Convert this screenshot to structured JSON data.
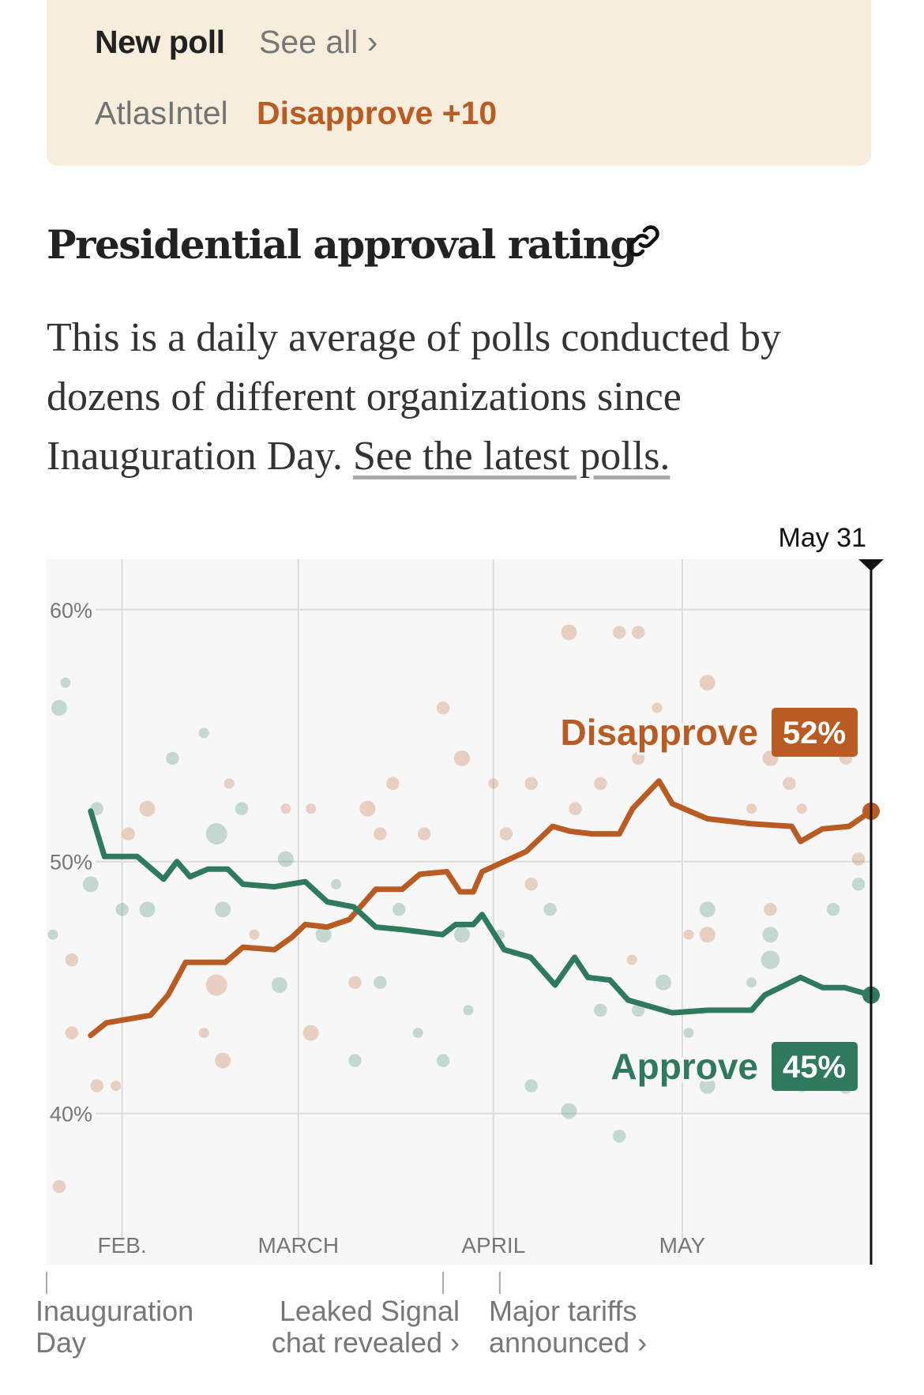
{
  "new_poll": {
    "label": "New poll",
    "see_all": "See all ›",
    "pollster": "AtlasIntel",
    "result": "Disapprove +10"
  },
  "title": "Presidential approval rating",
  "description": {
    "text": "This is a daily average of polls conducted by dozens of different organizations since Inauguration Day. ",
    "link": "See the latest polls."
  },
  "colors": {
    "disapprove": "#b85c24",
    "approve": "#2f7a5c",
    "card": "#f6eddc"
  },
  "chart_data": {
    "type": "line",
    "x_unit": "days since Jan 20",
    "xlim": [
      0,
      131
    ],
    "ylim": [
      34,
      62
    ],
    "yticks": [
      {
        "v": 60,
        "label": "60%"
      },
      {
        "v": 50,
        "label": "50%"
      },
      {
        "v": 40,
        "label": "40%"
      }
    ],
    "xticks": [
      {
        "d": 12,
        "label": "FEB."
      },
      {
        "d": 40,
        "label": "MARCH"
      },
      {
        "d": 71,
        "label": "APRIL"
      },
      {
        "d": 101,
        "label": "MAY"
      }
    ],
    "current_date": {
      "d": 131,
      "label": "May 31"
    },
    "series": [
      {
        "name": "Disapprove",
        "latest": "52%",
        "color": "#b85c24",
        "points": [
          [
            7,
            43.1
          ],
          [
            9.5,
            43.6
          ],
          [
            16.5,
            43.9
          ],
          [
            19.3,
            44.7
          ],
          [
            22.1,
            46.0
          ],
          [
            28.4,
            46.0
          ],
          [
            31.2,
            46.6
          ],
          [
            36.2,
            46.5
          ],
          [
            39,
            47.0
          ],
          [
            41.1,
            47.5
          ],
          [
            44.6,
            47.4
          ],
          [
            48.1,
            47.7
          ],
          [
            52.3,
            48.9
          ],
          [
            56.5,
            48.9
          ],
          [
            59.3,
            49.5
          ],
          [
            63.6,
            49.6
          ],
          [
            65.7,
            48.8
          ],
          [
            67.8,
            48.8
          ],
          [
            69.2,
            49.6
          ],
          [
            72.7,
            50.0
          ],
          [
            76.2,
            50.4
          ],
          [
            80.4,
            51.4
          ],
          [
            83.2,
            51.2
          ],
          [
            86.7,
            51.1
          ],
          [
            91,
            51.1
          ],
          [
            93.1,
            52.1
          ],
          [
            97.3,
            53.2
          ],
          [
            99.4,
            52.3
          ],
          [
            105,
            51.7
          ],
          [
            112,
            51.5
          ],
          [
            118.4,
            51.4
          ],
          [
            119.8,
            50.8
          ],
          [
            123.3,
            51.3
          ],
          [
            127.5,
            51.4
          ],
          [
            131,
            52.0
          ]
        ],
        "polls": [
          [
            83,
            59.1,
            2
          ],
          [
            91,
            59.1,
            1.5
          ],
          [
            94,
            59.1,
            1.5
          ],
          [
            105,
            57.1,
            2
          ],
          [
            63,
            56.1,
            1.5
          ],
          [
            66,
            54.1,
            2
          ],
          [
            16,
            52.1,
            2
          ],
          [
            13,
            51.1,
            1.5
          ],
          [
            8,
            41.1,
            1.5
          ],
          [
            2,
            37.1,
            1.5
          ],
          [
            27,
            45.1,
            3
          ],
          [
            28,
            42.1,
            2
          ],
          [
            42,
            43.2,
            2
          ],
          [
            51,
            52.1,
            2
          ],
          [
            53,
            51.1,
            1.5
          ],
          [
            73,
            51.1,
            1.5
          ],
          [
            77,
            53.1,
            1.5
          ],
          [
            94,
            54.1,
            1.5
          ],
          [
            115,
            54.1,
            2
          ],
          [
            118,
            53.1,
            1.5
          ],
          [
            127,
            54.1,
            1.5
          ],
          [
            129,
            50.1,
            1.5
          ],
          [
            105,
            47.1,
            2
          ],
          [
            102,
            47.1,
            1
          ],
          [
            115,
            48.1,
            1.5
          ],
          [
            49,
            45.2,
            1.5
          ],
          [
            38,
            52.1,
            1
          ],
          [
            33,
            47.1,
            1
          ],
          [
            4,
            46.1,
            1.5
          ],
          [
            4,
            43.2,
            1.5
          ],
          [
            11,
            41.1,
            1
          ],
          [
            77,
            49.1,
            1.5
          ],
          [
            60,
            51.1,
            1.5
          ],
          [
            71,
            53.1,
            1
          ],
          [
            84,
            52.1,
            1.5
          ],
          [
            88,
            53.1,
            1.5
          ],
          [
            97,
            56.1,
            1
          ],
          [
            112,
            52.1,
            1
          ],
          [
            120,
            52.1,
            1
          ],
          [
            93,
            46.1,
            1
          ],
          [
            29,
            53.1,
            1
          ],
          [
            42,
            52.1,
            1
          ],
          [
            25,
            43.2,
            1
          ],
          [
            55,
            53.1,
            1.5
          ]
        ]
      },
      {
        "name": "Approve",
        "latest": "45%",
        "color": "#2f7a5c",
        "points": [
          [
            7,
            52.0
          ],
          [
            9.2,
            50.2
          ],
          [
            14.4,
            50.2
          ],
          [
            18.6,
            49.3
          ],
          [
            20.7,
            50.0
          ],
          [
            22.8,
            49.4
          ],
          [
            25.6,
            49.7
          ],
          [
            28.8,
            49.7
          ],
          [
            31.2,
            49.1
          ],
          [
            36.2,
            49.0
          ],
          [
            41.1,
            49.2
          ],
          [
            44.6,
            48.4
          ],
          [
            48.8,
            48.2
          ],
          [
            52.3,
            47.4
          ],
          [
            56.5,
            47.3
          ],
          [
            62.9,
            47.1
          ],
          [
            65,
            47.5
          ],
          [
            67.8,
            47.5
          ],
          [
            69.2,
            47.9
          ],
          [
            72.7,
            46.5
          ],
          [
            76.9,
            46.2
          ],
          [
            80.8,
            45.1
          ],
          [
            83.9,
            46.2
          ],
          [
            86,
            45.4
          ],
          [
            89.5,
            45.3
          ],
          [
            92.4,
            44.5
          ],
          [
            96.6,
            44.2
          ],
          [
            99.4,
            44.0
          ],
          [
            105,
            44.1
          ],
          [
            112,
            44.1
          ],
          [
            114.1,
            44.7
          ],
          [
            119.8,
            45.4
          ],
          [
            123.3,
            45.0
          ],
          [
            126.8,
            45.0
          ],
          [
            131,
            44.7
          ]
        ],
        "polls": [
          [
            2,
            56.1,
            2
          ],
          [
            3,
            57.1,
            1
          ],
          [
            8,
            52.1,
            1.5
          ],
          [
            27,
            51.1,
            3
          ],
          [
            20,
            54.1,
            1.5
          ],
          [
            25,
            55.1,
            1
          ],
          [
            31,
            52.1,
            1.5
          ],
          [
            38,
            50.1,
            2
          ],
          [
            16,
            48.1,
            2
          ],
          [
            28,
            48.1,
            2
          ],
          [
            37,
            45.1,
            2
          ],
          [
            49,
            42.1,
            1.5
          ],
          [
            53,
            45.2,
            1.5
          ],
          [
            63,
            42.1,
            1.5
          ],
          [
            66,
            47.1,
            2
          ],
          [
            77,
            41.1,
            1.5
          ],
          [
            83,
            40.1,
            2
          ],
          [
            91,
            39.1,
            1.5
          ],
          [
            98,
            45.2,
            2
          ],
          [
            105,
            48.1,
            2
          ],
          [
            105,
            41.1,
            2
          ],
          [
            115,
            47.1,
            2
          ],
          [
            115,
            46.1,
            2.5
          ],
          [
            125,
            48.1,
            1.5
          ],
          [
            129,
            49.1,
            1.5
          ],
          [
            127,
            41.1,
            2
          ],
          [
            88,
            44.1,
            1.5
          ],
          [
            80,
            48.1,
            1.5
          ],
          [
            72,
            47.1,
            1
          ],
          [
            56,
            48.1,
            1.5
          ],
          [
            46,
            49.1,
            1
          ],
          [
            44,
            47.1,
            2
          ],
          [
            12,
            48.1,
            1.5
          ],
          [
            7,
            49.1,
            2
          ],
          [
            1,
            47.1,
            1
          ],
          [
            67,
            44.1,
            1
          ],
          [
            59,
            43.2,
            1
          ],
          [
            112,
            45.2,
            1
          ],
          [
            120,
            41.1,
            1.5
          ],
          [
            102,
            43.2,
            1
          ],
          [
            94,
            44.1,
            1.5
          ]
        ]
      }
    ],
    "annotations": [
      {
        "d": 0,
        "line1": "Inauguration",
        "line2": "Day"
      },
      {
        "d": 63,
        "line1": "Leaked Signal",
        "line2": "chat revealed ›"
      },
      {
        "d": 72,
        "line1": "Major tariffs",
        "line2": "announced ›"
      }
    ]
  }
}
